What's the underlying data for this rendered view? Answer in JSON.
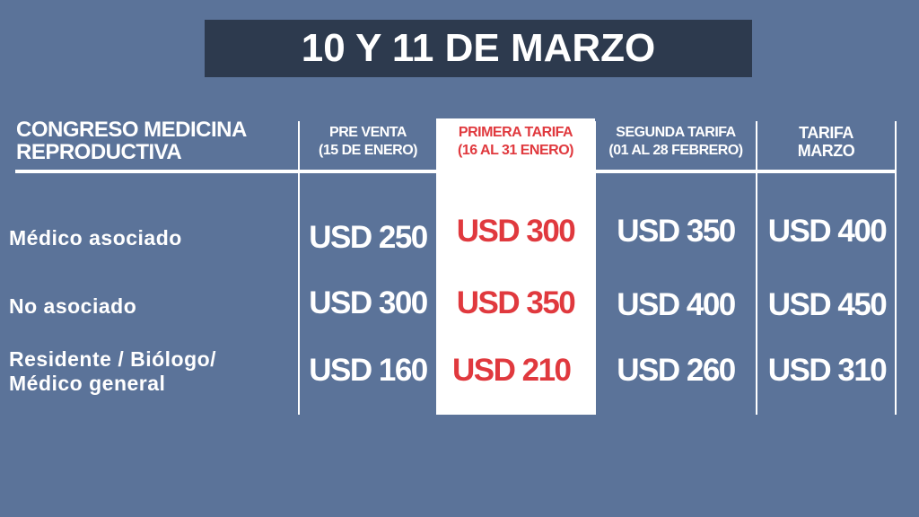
{
  "title": "10 Y 11 DE MARZO",
  "table": {
    "corner": [
      "CONGRESO MEDICINA",
      "REPRODUCTIVA"
    ],
    "columns": [
      {
        "line1": "PRE VENTA",
        "line2": "(15 DE ENERO)"
      },
      {
        "line1": "PRIMERA TARIFA",
        "line2": "(16 AL 31 ENERO)"
      },
      {
        "line1": "SEGUNDA TARIFA",
        "line2": "(01 AL 28 FEBRERO)"
      },
      {
        "line1": "TARIFA",
        "line2": "MARZO"
      }
    ],
    "rows": [
      {
        "label1": "Médico asociado",
        "label2": "",
        "values": [
          "USD 250",
          "USD 300",
          "USD 350",
          "USD 400"
        ]
      },
      {
        "label1": "No asociado",
        "label2": "",
        "values": [
          "USD 300",
          "USD 350",
          "USD 400",
          "USD 450"
        ]
      },
      {
        "label1": "Residente / Biólogo/",
        "label2": "Médico general",
        "values": [
          "USD 160",
          "USD 210",
          "USD 260",
          "USD 310"
        ]
      }
    ]
  },
  "colors": {
    "background": "#5b7399",
    "title_box": "#2d3a4e",
    "highlight": "#ffffff",
    "highlight_text": "#e0393e"
  }
}
